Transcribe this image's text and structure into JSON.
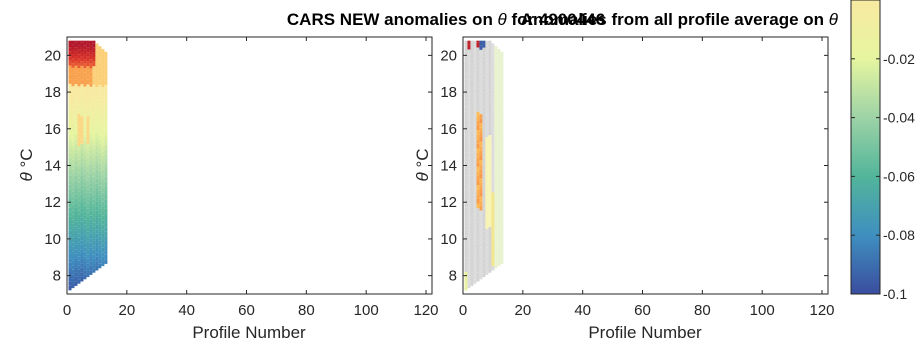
{
  "chart_data": [
    {
      "type": "heatmap",
      "title_prefix": "CARS NEW anomalies on ",
      "title_symbol": "θ",
      "title_suffix": " for 4900446",
      "xlabel": "Profile Number",
      "ylabel_symbol": "θ",
      "ylabel_unit": " °C",
      "xlim": [
        0,
        122
      ],
      "ylim": [
        7,
        21
      ],
      "xticks": [
        0,
        20,
        40,
        60,
        80,
        100,
        120
      ],
      "yticks": [
        8,
        10,
        12,
        14,
        16,
        18,
        20
      ],
      "profile_range": [
        1,
        13
      ],
      "theta_range": [
        7.2,
        20.8
      ],
      "pattern": "cars"
    },
    {
      "type": "heatmap",
      "title_prefix": "Anomalies from all profile average on ",
      "title_symbol": "θ",
      "title_suffix": "",
      "xlabel": "Profile Number",
      "ylabel_symbol": "θ",
      "ylabel_unit": " °C",
      "xlim": [
        0,
        122
      ],
      "ylim": [
        7,
        21
      ],
      "xticks": [
        0,
        20,
        40,
        60,
        80,
        100,
        120
      ],
      "yticks": [
        8,
        10,
        12,
        14,
        16,
        18,
        20
      ],
      "profile_range": [
        1,
        13
      ],
      "theta_range": [
        7.2,
        20.8
      ],
      "pattern": "avg"
    }
  ],
  "colorbar": {
    "ticks": [
      -0.02,
      -0.04,
      -0.06,
      -0.08,
      -0.1
    ],
    "tick_labels": [
      "-0.02",
      "-0.04",
      "-0.06",
      "-0.08",
      "-0.1"
    ],
    "range": [
      -0.1,
      0.0
    ],
    "colors": [
      "#3a4d9f",
      "#3f8fc0",
      "#52b59a",
      "#9dd3a6",
      "#e6f5a0",
      "#f8e9a1"
    ]
  }
}
